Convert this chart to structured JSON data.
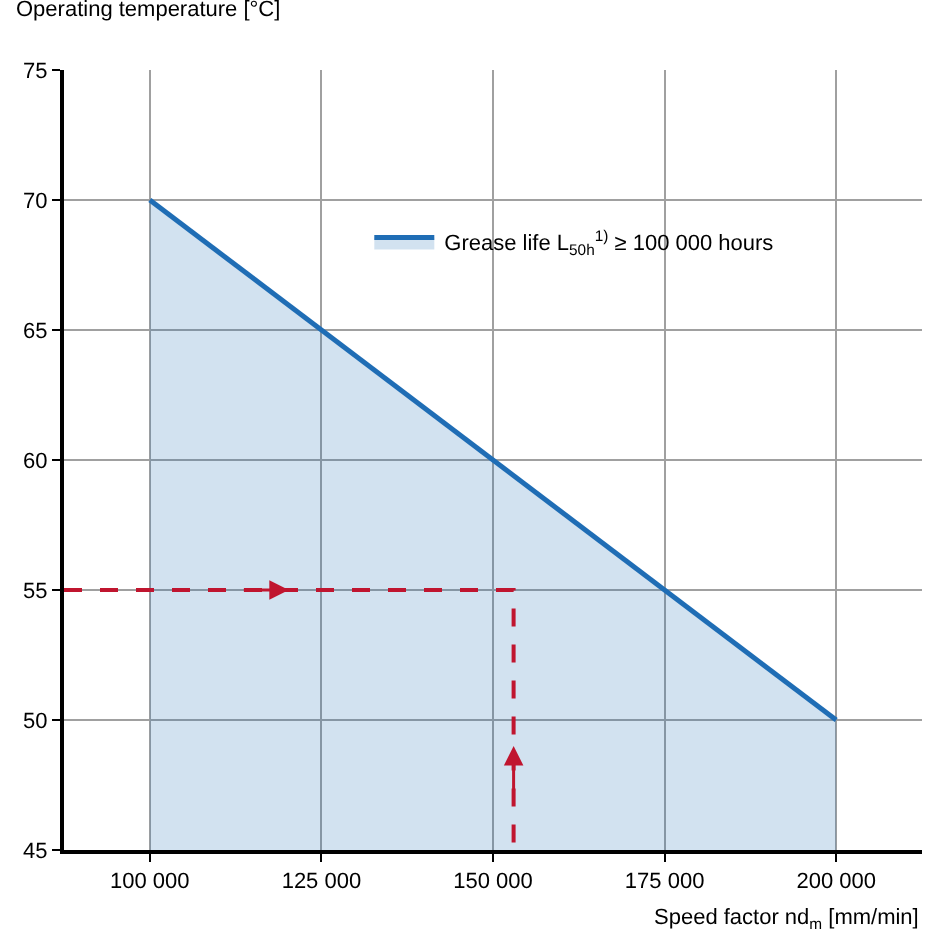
{
  "chart_data": {
    "type": "area",
    "xlabel": "Speed factor nd$_{m}$ [mm/min]",
    "ylabel": "Operating temperature [°C]",
    "series": [
      {
        "name": "Grease life L$_{50h}$$^{1)}$ ≥ 100 000 hours",
        "color": "#1f6db5",
        "x": [
          100000,
          200000
        ],
        "values": [
          70,
          50
        ]
      },
      {
        "type": "line",
        "color": "#c0152f",
        "line_style": "dashed",
        "x": [
          87500,
          153000,
          153000
        ],
        "values": [
          55,
          55,
          45
        ]
      }
    ],
    "xlim": [
      87500,
      212500
    ],
    "xticks": [
      {
        "value": 100000,
        "label": "100 000"
      },
      {
        "value": 125000,
        "label": "125 000"
      },
      {
        "value": 150000,
        "label": "150 000"
      },
      {
        "value": 175000,
        "label": "175 000"
      },
      {
        "value": 200000,
        "label": "200 000"
      }
    ],
    "ylim": [
      45,
      75
    ],
    "yticks": [
      45,
      50,
      55,
      60,
      65,
      70,
      75
    ],
    "grid": true,
    "legend": "top"
  }
}
